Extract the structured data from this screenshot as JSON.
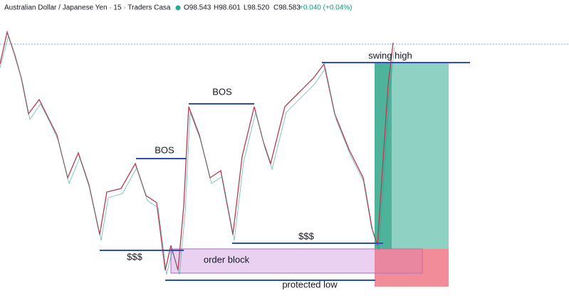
{
  "header": {
    "symbol": "Australian Dollar / Japanese Yen · 15 · Traders Casa",
    "open": "O98.543",
    "high": "H98.601",
    "low": "L98.520",
    "close": "C98.583",
    "change": "+0.040 (+0.04%)"
  },
  "annotations": {
    "bos_1": "BOS",
    "bos_2": "BOS",
    "liquidity_1": "$$$",
    "liquidity_2": "$$$",
    "order_block": "order block",
    "swing_high": "swing high",
    "protected_low": "protected low"
  }
}
